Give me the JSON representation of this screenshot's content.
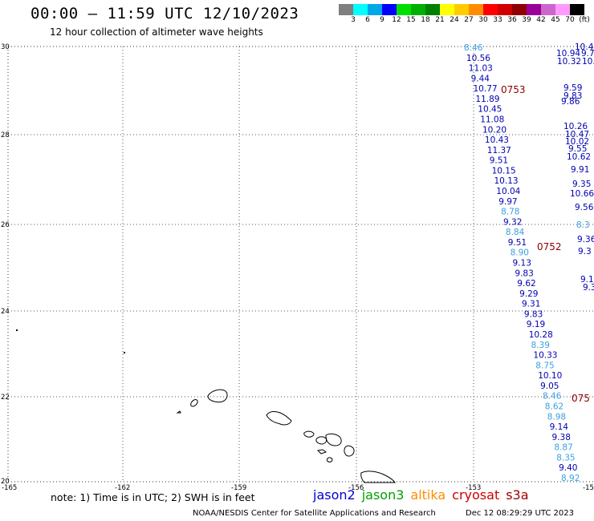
{
  "title": "00:00 – 11:59 UTC 12/10/2023",
  "subtitle": "12 hour collection of altimeter wave heights",
  "color_scale": {
    "labels": [
      "3",
      "6",
      "9",
      "12",
      "15",
      "18",
      "21",
      "24",
      "27",
      "30",
      "33",
      "36",
      "39",
      "42",
      "45",
      "70",
      "(ft)"
    ],
    "colors": [
      "#7f7f7f",
      "#00ffff",
      "#00a8e8",
      "#0000ff",
      "#00e000",
      "#00b000",
      "#008000",
      "#ffff00",
      "#ffcc00",
      "#ff8c00",
      "#ff0000",
      "#d00000",
      "#900000",
      "#990099",
      "#cc66cc",
      "#ff99ff",
      "#000000"
    ]
  },
  "axes": {
    "x_labels": [
      "-165",
      "-162",
      "-159",
      "-156",
      "-153",
      "-15"
    ],
    "y_labels": [
      "30",
      "28",
      "26",
      "24",
      "22",
      "20"
    ]
  },
  "tracks": {
    "left": [
      {
        "value": "8.46",
        "color": "#3aa0e0"
      },
      {
        "value": "10.56",
        "color": "#0000b0"
      },
      {
        "value": "11.03",
        "color": "#0000b0"
      },
      {
        "value": "9.44",
        "color": "#0000b0"
      },
      {
        "value": "10.77",
        "color": "#0000b0"
      },
      {
        "value": "11.89",
        "color": "#0000b0"
      },
      {
        "value": "10.45",
        "color": "#0000b0"
      },
      {
        "value": "11.08",
        "color": "#0000b0"
      },
      {
        "value": "10.20",
        "color": "#0000b0"
      },
      {
        "value": "10.43",
        "color": "#0000b0"
      },
      {
        "value": "11.37",
        "color": "#0000b0"
      },
      {
        "value": "9.51",
        "color": "#0000b0"
      },
      {
        "value": "10.15",
        "color": "#0000b0"
      },
      {
        "value": "10.13",
        "color": "#0000b0"
      },
      {
        "value": "10.04",
        "color": "#0000b0"
      },
      {
        "value": "9.97",
        "color": "#0000b0"
      },
      {
        "value": "8.78",
        "color": "#3aa0e0"
      },
      {
        "value": "9.32",
        "color": "#0000b0"
      },
      {
        "value": "8.84",
        "color": "#3aa0e0"
      },
      {
        "value": "9.51",
        "color": "#0000b0"
      },
      {
        "value": "8.90",
        "color": "#3aa0e0"
      },
      {
        "value": "9.13",
        "color": "#0000b0"
      },
      {
        "value": "9.83",
        "color": "#0000b0"
      },
      {
        "value": "9.62",
        "color": "#0000b0"
      },
      {
        "value": "9.29",
        "color": "#0000b0"
      },
      {
        "value": "9.31",
        "color": "#0000b0"
      },
      {
        "value": "9.83",
        "color": "#0000b0"
      },
      {
        "value": "9.19",
        "color": "#0000b0"
      },
      {
        "value": "10.28",
        "color": "#0000b0"
      },
      {
        "value": "8.39",
        "color": "#3aa0e0"
      },
      {
        "value": "10.33",
        "color": "#0000b0"
      },
      {
        "value": "8.75",
        "color": "#3aa0e0"
      },
      {
        "value": "10.10",
        "color": "#0000b0"
      },
      {
        "value": "9.05",
        "color": "#0000b0"
      },
      {
        "value": "8.46",
        "color": "#3aa0e0"
      },
      {
        "value": "8.62",
        "color": "#3aa0e0"
      },
      {
        "value": "8.98",
        "color": "#3aa0e0"
      },
      {
        "value": "9.14",
        "color": "#0000b0"
      },
      {
        "value": "9.38",
        "color": "#0000b0"
      },
      {
        "value": "8.87",
        "color": "#3aa0e0"
      },
      {
        "value": "8.35",
        "color": "#3aa0e0"
      },
      {
        "value": "9.40",
        "color": "#0000b0"
      },
      {
        "value": "8.92",
        "color": "#3aa0e0"
      }
    ],
    "right": [
      {
        "value": "10.4",
        "color": "#0000b0"
      },
      {
        "value": "10.94",
        "color": "#0000b0"
      },
      {
        "value": "9.7",
        "color": "#0000b0"
      },
      {
        "value": "10.32",
        "color": "#0000b0"
      },
      {
        "value": "10.",
        "color": "#0000b0"
      },
      {
        "value": "9.59",
        "color": "#0000b0"
      },
      {
        "value": "9.83",
        "color": "#0000b0"
      },
      {
        "value": "9.86",
        "color": "#0000b0"
      },
      {
        "value": "10.26",
        "color": "#0000b0"
      },
      {
        "value": "10.47",
        "color": "#0000b0"
      },
      {
        "value": "10.02",
        "color": "#0000b0"
      },
      {
        "value": "9.55",
        "color": "#0000b0"
      },
      {
        "value": "10.62",
        "color": "#0000b0"
      },
      {
        "value": "9.91",
        "color": "#0000b0"
      },
      {
        "value": "9.35",
        "color": "#0000b0"
      },
      {
        "value": "10.66",
        "color": "#0000b0"
      },
      {
        "value": "9.56",
        "color": "#0000b0"
      },
      {
        "value": "8.3",
        "color": "#3aa0e0"
      },
      {
        "value": "9.36",
        "color": "#0000b0"
      },
      {
        "value": "9.3",
        "color": "#0000b0"
      },
      {
        "value": "9.1",
        "color": "#0000b0"
      },
      {
        "value": "9.3",
        "color": "#0000b0"
      }
    ]
  },
  "pass_labels": [
    "0753",
    "0752",
    "075"
  ],
  "note": "note: 1) Time is in UTC; 2) SWH is in feet",
  "legend": [
    {
      "label": "jason2",
      "color": "#0000cc"
    },
    {
      "label": "jason3",
      "color": "#00a000"
    },
    {
      "label": "altika",
      "color": "#ff8c00"
    },
    {
      "label": "cryosat",
      "color": "#d00000"
    },
    {
      "label": "s3a",
      "color": "#a00000"
    }
  ],
  "footer": {
    "credit": "NOAA/NESDIS Center for Satellite Applications and Research",
    "timestamp": "Dec 12 08:29:29 UTC 2023"
  }
}
